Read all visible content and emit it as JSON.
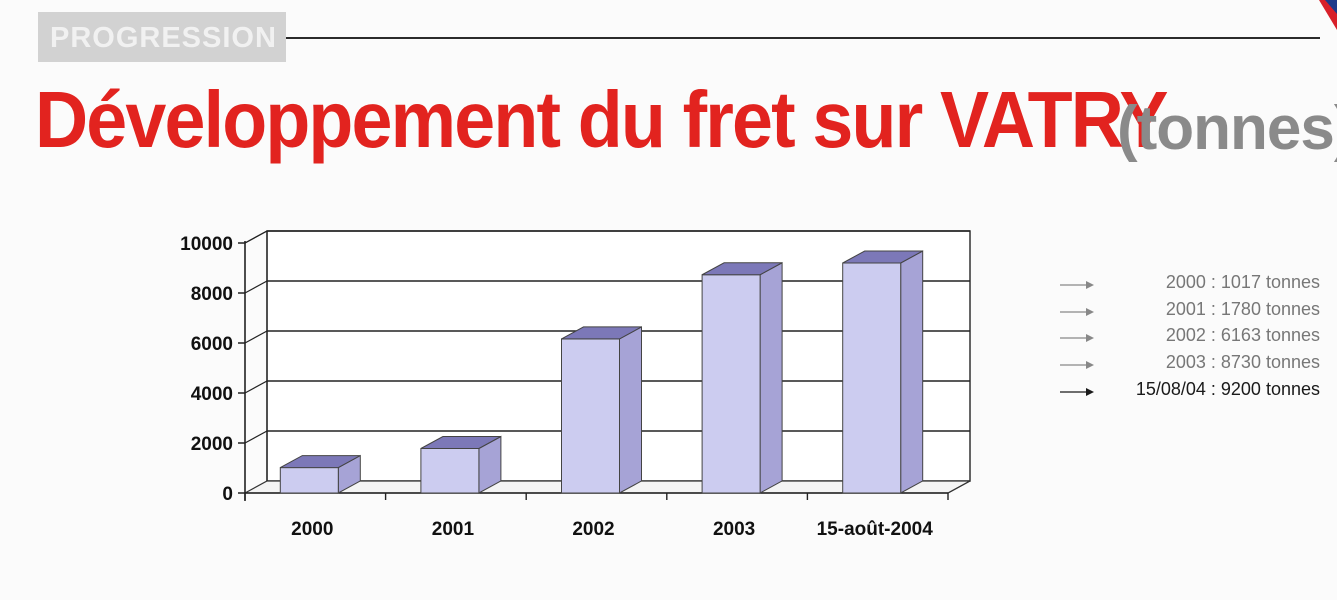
{
  "header": {
    "section_label": "PROGRESSION",
    "title_main": "Développement du fret sur VATRY",
    "title_unit": "(tonnes)"
  },
  "colors": {
    "title_red": "#e2231f",
    "bar_face": "#ccccf0",
    "bar_top": "#7c78b8",
    "bar_side": "#a6a3d6"
  },
  "chart_data": {
    "type": "bar",
    "categories": [
      "2000",
      "2001",
      "2002",
      "2003",
      "15-août-2004"
    ],
    "values": [
      1017,
      1780,
      6163,
      8730,
      9200
    ],
    "ylim": [
      0,
      10000
    ],
    "yticks": [
      "0",
      "2000",
      "4000",
      "6000",
      "8000",
      "10000"
    ],
    "grid": true,
    "legend_placement": "right"
  },
  "legend": {
    "items": [
      {
        "text": "2000 : 1017 tonnes",
        "current": false
      },
      {
        "text": "2001 : 1780 tonnes",
        "current": false
      },
      {
        "text": "2002 : 6163 tonnes",
        "current": false
      },
      {
        "text": "2003 : 8730 tonnes",
        "current": false
      },
      {
        "text": "15/08/04 : 9200 tonnes",
        "current": true
      }
    ]
  }
}
